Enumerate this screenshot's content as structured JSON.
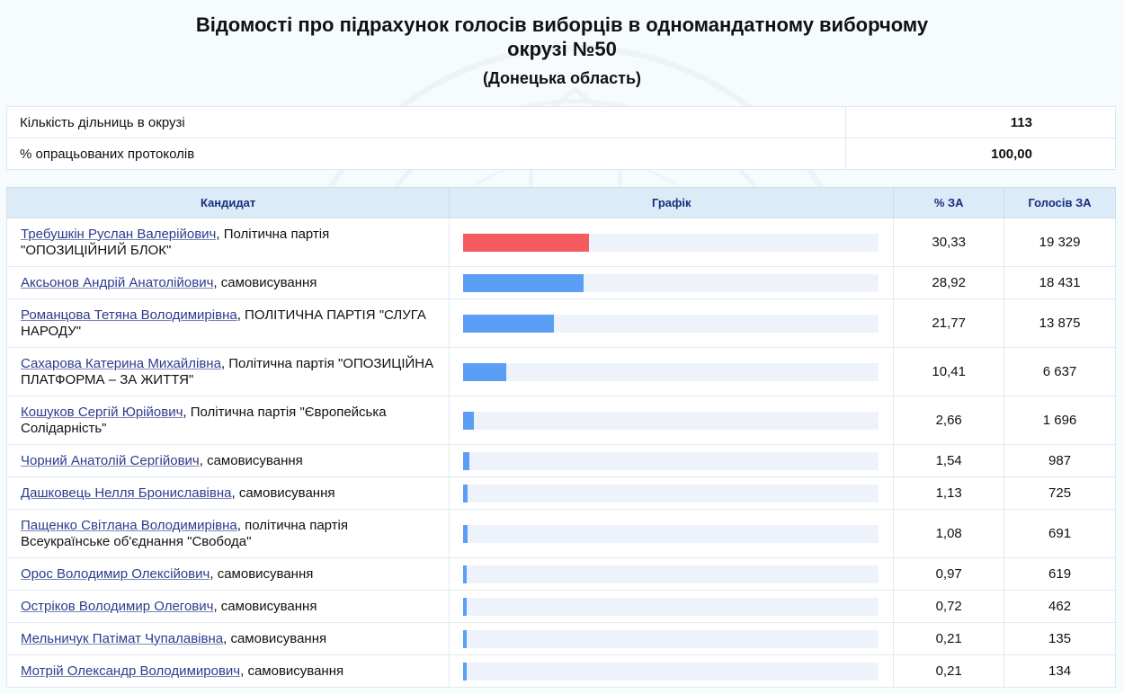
{
  "header": {
    "title": "Відомості про підрахунок голосів виборців в одномандатному виборчому окрузі №50",
    "subtitle": "(Донецька область)"
  },
  "summary": [
    {
      "label": "Кількість дільниць в окрузі",
      "value": "113"
    },
    {
      "label": "% опрацьованих протоколів",
      "value": "100,00"
    }
  ],
  "table": {
    "headers": {
      "candidate": "Кандидат",
      "chart": "Графік",
      "percent": "% ЗА",
      "votes": "Голосів ЗА"
    }
  },
  "colors": {
    "winner_bar": "#f45a5e",
    "bar": "#5b9ef6",
    "track": "#eef3fb",
    "header_bg": "#dcebf8",
    "link": "#2c3c8f"
  },
  "candidates": [
    {
      "name": "Требушкін Руслан Валерійович",
      "affiliation": ", Політична партія \"ОПОЗИЦІЙНИЙ БЛОК\"",
      "percent": "30,33",
      "votes": "19 329",
      "share": 30.33
    },
    {
      "name": "Аксьонов Андрій Анатолійович",
      "affiliation": ", самовисування",
      "percent": "28,92",
      "votes": "18 431",
      "share": 28.92
    },
    {
      "name": "Романцова Тетяна Володимирівна",
      "affiliation": ", ПОЛІТИЧНА ПАРТІЯ \"СЛУГА НАРОДУ\"",
      "percent": "21,77",
      "votes": "13 875",
      "share": 21.77
    },
    {
      "name": "Сахарова Катерина Михайлівна",
      "affiliation": ", Політична партія \"ОПОЗИЦІЙНА ПЛАТФОРМА – ЗА ЖИТТЯ\"",
      "percent": "10,41",
      "votes": "6 637",
      "share": 10.41
    },
    {
      "name": "Кошуков Сергій Юрійович",
      "affiliation": ", Політична партія \"Європейська Солідарність\"",
      "percent": "2,66",
      "votes": "1 696",
      "share": 2.66
    },
    {
      "name": "Чорний Анатолій Сергійович",
      "affiliation": ", самовисування",
      "percent": "1,54",
      "votes": "987",
      "share": 1.54
    },
    {
      "name": "Дашковець Нелля Брониславівна",
      "affiliation": ", самовисування",
      "percent": "1,13",
      "votes": "725",
      "share": 1.13
    },
    {
      "name": "Пащенко Світлана Володимирівна",
      "affiliation": ", політична партія Всеукраїнське об'єднання \"Свобода\"",
      "percent": "1,08",
      "votes": "691",
      "share": 1.08
    },
    {
      "name": "Орос Володимир Олексійович",
      "affiliation": ", самовисування",
      "percent": "0,97",
      "votes": "619",
      "share": 0.97
    },
    {
      "name": "Остріков Володимир Олегович",
      "affiliation": ", самовисування",
      "percent": "0,72",
      "votes": "462",
      "share": 0.72
    },
    {
      "name": "Мельничук Патімат Чупалавівна",
      "affiliation": ", самовисування",
      "percent": "0,21",
      "votes": "135",
      "share": 0.21
    },
    {
      "name": "Мотрій Олександр Володимирович",
      "affiliation": ", самовисування",
      "percent": "0,21",
      "votes": "134",
      "share": 0.21
    }
  ]
}
